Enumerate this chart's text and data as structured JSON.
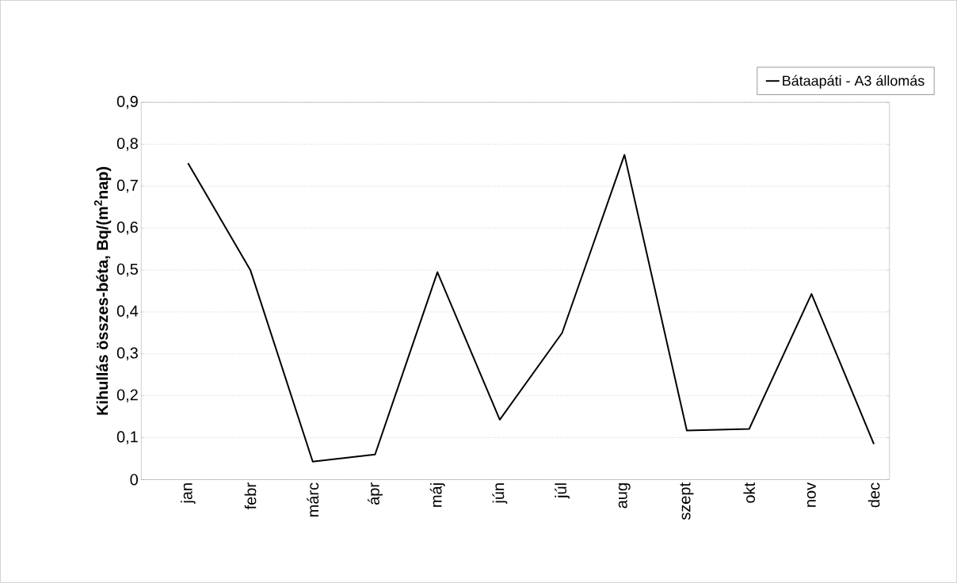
{
  "chart_data": {
    "type": "line",
    "ylabel": "Kihullás összes-béta, Bq/(m$^{2}$nap)",
    "categories": [
      "jan",
      "febr",
      "márc",
      "ápr",
      "máj",
      "jún",
      "júl",
      "aug",
      "szept",
      "okt",
      "nov",
      "dec"
    ],
    "series": [
      {
        "name": "Bátaapáti - A3 állomás",
        "color": "#000000",
        "values": [
          0.755,
          0.5,
          0.043,
          0.06,
          0.495,
          0.143,
          0.35,
          0.775,
          0.117,
          0.121,
          0.443,
          0.085
        ]
      }
    ],
    "ylim": [
      0,
      0.9
    ],
    "yticks": [
      {
        "value": 0,
        "label": "0"
      },
      {
        "value": 0.1,
        "label": "0,1"
      },
      {
        "value": 0.2,
        "label": "0,2"
      },
      {
        "value": 0.3,
        "label": "0,3"
      },
      {
        "value": 0.4,
        "label": "0,4"
      },
      {
        "value": 0.5,
        "label": "0,5"
      },
      {
        "value": 0.6,
        "label": "0,6"
      },
      {
        "value": 0.7,
        "label": "0,7"
      },
      {
        "value": 0.8,
        "label": "0,8"
      },
      {
        "value": 0.9,
        "label": "0,9"
      }
    ],
    "grid": "y",
    "legend": "top right",
    "marker": "none",
    "line_style": "solid"
  }
}
